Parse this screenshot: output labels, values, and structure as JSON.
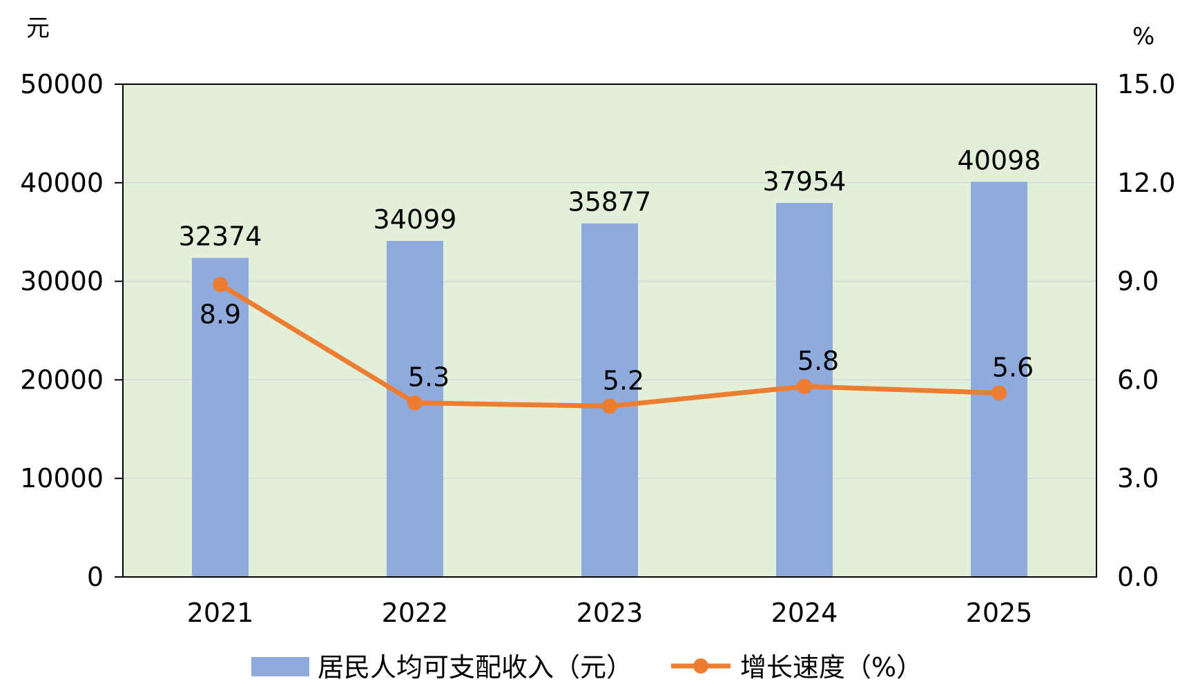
{
  "chart_data": {
    "type": "bar",
    "categories": [
      "2021",
      "2022",
      "2023",
      "2024",
      "2025"
    ],
    "series": [
      {
        "name": "居民人均可支配收入（元）",
        "type": "bar",
        "axis": "left",
        "values": [
          32374,
          34099,
          35877,
          37954,
          40098
        ],
        "color": "#8faadc"
      },
      {
        "name": "增长速度（%）",
        "type": "line",
        "axis": "right",
        "values": [
          8.9,
          5.3,
          5.2,
          5.8,
          5.6
        ],
        "color": "#ed7d31"
      }
    ],
    "left_axis": {
      "unit": "元",
      "ylim": [
        0,
        50000
      ],
      "ticks": [
        "0",
        "10000",
        "20000",
        "30000",
        "40000",
        "50000"
      ]
    },
    "right_axis": {
      "unit": "%",
      "ylim": [
        0,
        15
      ],
      "ticks": [
        "0.0",
        "3.0",
        "6.0",
        "9.0",
        "12.0",
        "15.0"
      ]
    },
    "plot_background": "#e2efd9",
    "grid": true,
    "legend_position": "bottom"
  }
}
